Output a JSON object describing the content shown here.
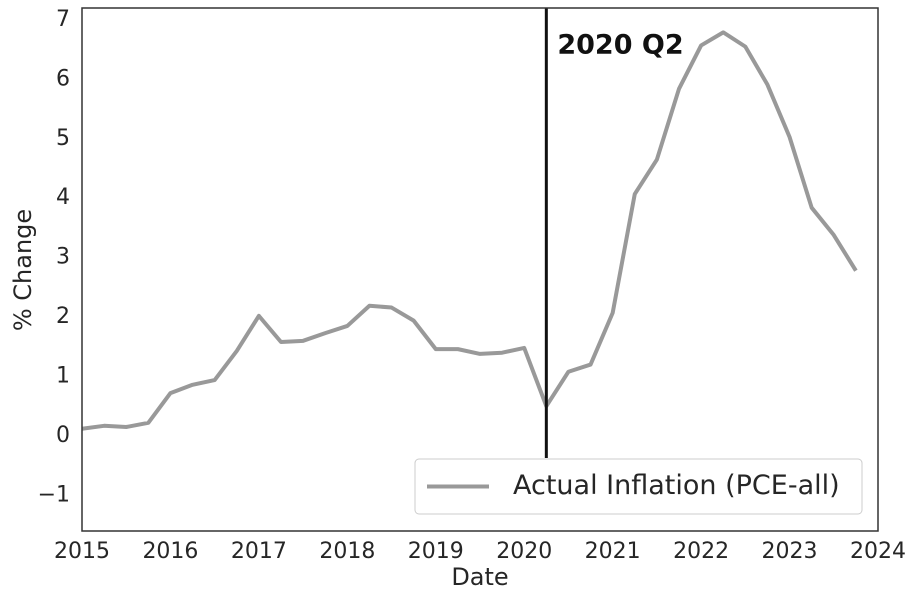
{
  "chart_data": {
    "type": "line",
    "xlabel": "Date",
    "ylabel": "% Change",
    "x": [
      2015,
      2015.25,
      2015.5,
      2015.75,
      2016,
      2016.25,
      2016.5,
      2016.75,
      2017,
      2017.25,
      2017.5,
      2017.75,
      2018,
      2018.25,
      2018.5,
      2018.75,
      2019,
      2019.25,
      2019.5,
      2019.75,
      2020,
      2020.25,
      2020.5,
      2020.75,
      2021,
      2021.25,
      2021.5,
      2021.75,
      2022,
      2022.25,
      2022.5,
      2022.75,
      2023,
      2023.25,
      2023.5,
      2023.75
    ],
    "series": [
      {
        "name": "Actual Inflation (PCE-all)",
        "color": "#999999",
        "values": [
          0.12,
          0.17,
          0.15,
          0.22,
          0.72,
          0.86,
          0.94,
          1.43,
          2.02,
          1.58,
          1.6,
          1.73,
          1.85,
          2.19,
          2.16,
          1.94,
          1.46,
          1.46,
          1.38,
          1.4,
          1.48,
          0.5,
          1.08,
          1.2,
          2.07,
          4.07,
          4.65,
          5.84,
          6.57,
          6.79,
          6.55,
          5.91,
          5.03,
          3.84,
          3.38,
          2.78
        ]
      }
    ],
    "vline": {
      "x": 2020.25,
      "label": "2020 Q2",
      "color": "#111111"
    },
    "xlim": [
      2015,
      2024
    ],
    "xticks": [
      2015,
      2016,
      2017,
      2018,
      2019,
      2020,
      2021,
      2022,
      2023,
      2024
    ],
    "ylim": [
      -1.6,
      7.2
    ],
    "yticks": [
      {
        "value": -1,
        "label": "−1"
      },
      0,
      1,
      2,
      3,
      4,
      5,
      6,
      7
    ],
    "grid": false,
    "legend": "lower right"
  }
}
